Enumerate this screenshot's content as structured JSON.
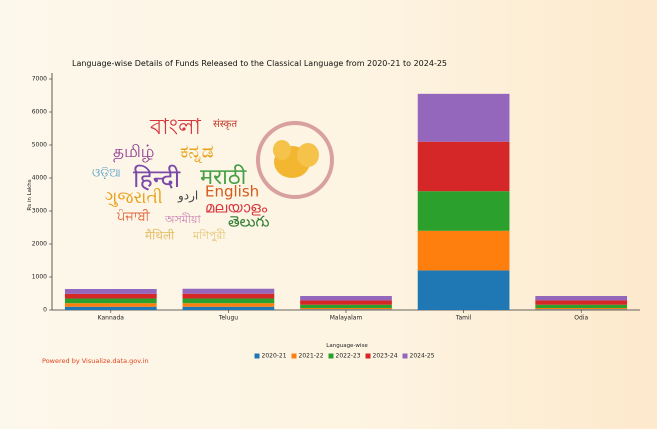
{
  "chart_data": {
    "type": "bar",
    "stacked": true,
    "title": "Language-wise Details of Funds Released to the Classical Language from 2020-21 to 2024-25",
    "x_label": "Language-wise",
    "y_label": "Rs in Lakhs",
    "categories": [
      "Kannada",
      "Telugu",
      "Malayalam",
      "Tamil",
      "Odia"
    ],
    "series": [
      {
        "name": "2020-21",
        "color": "#1f77b4",
        "values": [
          99,
          99,
          20,
          1200,
          20
        ]
      },
      {
        "name": "2021-22",
        "color": "#ff7f0e",
        "values": [
          107,
          107,
          40,
          1200,
          40
        ]
      },
      {
        "name": "2022-23",
        "color": "#2ca02c",
        "values": [
          143,
          143,
          100,
          1200,
          100
        ]
      },
      {
        "name": "2023-24",
        "color": "#d62728",
        "values": [
          140,
          145,
          130,
          1500,
          130
        ]
      },
      {
        "name": "2024-25",
        "color": "#9467bd",
        "values": [
          147,
          150,
          134,
          1450,
          134
        ]
      }
    ],
    "ylim": [
      0,
      7000
    ],
    "yticks": [
      0,
      1000,
      2000,
      3000,
      4000,
      5000,
      6000,
      7000
    ],
    "legend": "bottom",
    "footer": "Powered by Visualize.data.gov.in"
  },
  "illustration": {
    "words": [
      "বাংলা",
      "संस्कृत",
      "தமிழ்",
      "ಕನ್ನಡ",
      "ଓଡ଼ିଆ",
      "हिन्दी",
      "मराठी",
      "ગુજરાતી",
      "اردو",
      "English",
      "ਪੰਜਾਬੀ",
      "മലയാളം",
      "অসমীয়া",
      "తెలుగు",
      "मैथिली",
      "মণিপুরী"
    ]
  }
}
